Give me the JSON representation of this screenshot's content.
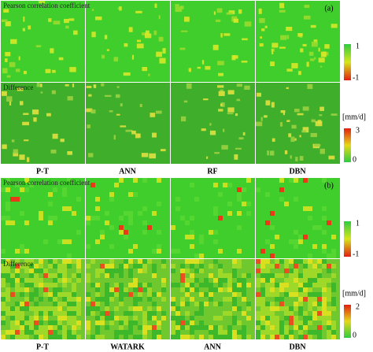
{
  "panels": [
    {
      "label": "(a)",
      "columns": [
        "P-T",
        "ANN",
        "RF",
        "DBN"
      ],
      "correlation": {
        "title": "Pearson correlation coefficient",
        "ticks": [
          "1",
          "-1"
        ]
      },
      "difference": {
        "title": "Difference",
        "unit": "[mm/d]",
        "ticks": [
          "3",
          "0"
        ]
      }
    },
    {
      "label": "(b)",
      "columns": [
        "P-T",
        "WATARK",
        "ANN",
        "DBN"
      ],
      "correlation": {
        "title": "Pearson correlation coefficient",
        "ticks": [
          "1",
          "-1"
        ]
      },
      "difference": {
        "title": "Difference",
        "unit": "[mm/d]",
        "ticks": [
          "2",
          "0"
        ]
      }
    }
  ]
}
